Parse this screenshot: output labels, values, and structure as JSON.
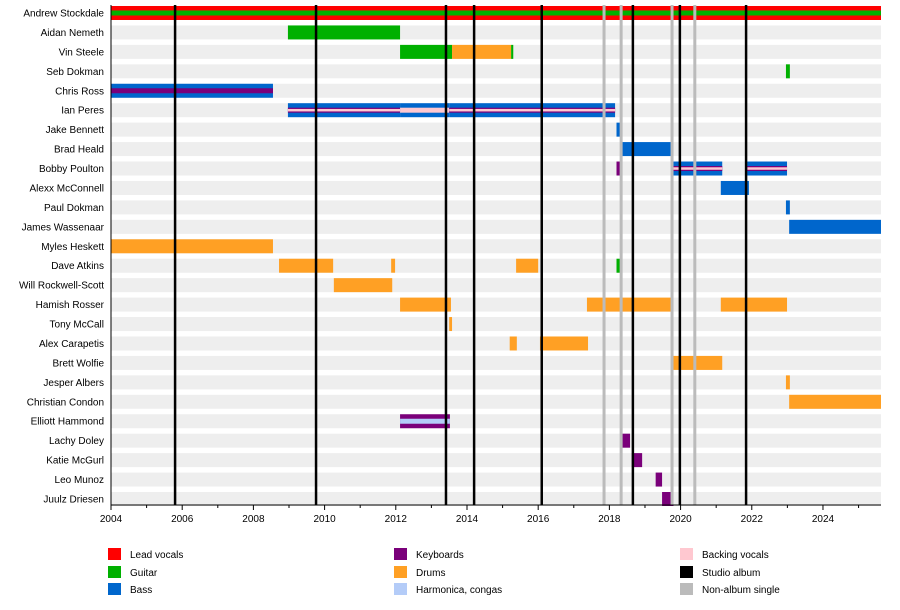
{
  "chart_data": {
    "type": "timeline",
    "xlim": [
      2004,
      2025.63
    ],
    "x_ticks": [
      2004,
      2006,
      2008,
      2010,
      2012,
      2014,
      2016,
      2018,
      2020,
      2022,
      2024
    ],
    "grid": false,
    "legend_placement": "bottom",
    "roles": {
      "Lead vocals": "#ff0000",
      "Guitar": "#00b000",
      "Bass": "#0066cc",
      "Keyboards": "#7a007a",
      "Drums": "#ffa024",
      "Harmonica, congas": "#b4ccf8",
      "Backing vocals": "#ffc8d0"
    },
    "legend": [
      {
        "label": "Lead vocals",
        "color": "#ff0000"
      },
      {
        "label": "Guitar",
        "color": "#00b000"
      },
      {
        "label": "Bass",
        "color": "#0066cc"
      },
      {
        "label": "Keyboards",
        "color": "#7a007a"
      },
      {
        "label": "Drums",
        "color": "#ffa024"
      },
      {
        "label": "Harmonica, congas",
        "color": "#b4ccf8"
      },
      {
        "label": "Backing vocals",
        "color": "#ffc8d0"
      },
      {
        "label": "Studio album",
        "color": "#000000"
      },
      {
        "label": "Non-album single",
        "color": "#bbbbbb"
      }
    ],
    "studio_albums": [
      2005.8,
      2009.76,
      2013.41,
      2014.2,
      2016.1,
      2018.66,
      2019.98,
      2021.84
    ],
    "non_album_singles": [
      2017.85,
      2018.33,
      2019.76,
      2020.4
    ],
    "members": [
      {
        "name": "Andrew Stockdale",
        "bars": [
          {
            "start": 2004,
            "end": 2025.63,
            "roles": [
              "Lead vocals",
              "Guitar"
            ]
          }
        ]
      },
      {
        "name": "Aidan Nemeth",
        "bars": [
          {
            "start": 2008.97,
            "end": 2012.12,
            "roles": [
              "Guitar"
            ]
          }
        ]
      },
      {
        "name": "Vin Steele",
        "bars": [
          {
            "start": 2012.12,
            "end": 2013.58,
            "roles": [
              "Guitar"
            ]
          },
          {
            "start": 2013.58,
            "end": 2015.24,
            "roles": [
              "Drums"
            ]
          },
          {
            "start": 2015.24,
            "end": 2015.3,
            "roles": [
              "Guitar"
            ]
          }
        ]
      },
      {
        "name": "Seb Dokman",
        "bars": [
          {
            "start": 2022.96,
            "end": 2023.07,
            "roles": [
              "Guitar"
            ]
          }
        ]
      },
      {
        "name": "Chris Ross",
        "bars": [
          {
            "start": 2004,
            "end": 2008.55,
            "roles": [
              "Bass",
              "Keyboards"
            ]
          }
        ]
      },
      {
        "name": "Ian Peres",
        "bars": [
          {
            "start": 2008.97,
            "end": 2012.12,
            "roles": [
              "Bass",
              "Keyboards",
              "Backing vocals"
            ]
          },
          {
            "start": 2012.12,
            "end": 2013.5,
            "roles": [
              "Bass",
              "Backing vocals"
            ]
          },
          {
            "start": 2013.5,
            "end": 2018.16,
            "roles": [
              "Bass",
              "Keyboards",
              "Backing vocals"
            ]
          }
        ]
      },
      {
        "name": "Jake Bennett",
        "bars": [
          {
            "start": 2018.2,
            "end": 2018.33,
            "roles": [
              "Bass"
            ]
          }
        ]
      },
      {
        "name": "Brad Heald",
        "bars": [
          {
            "start": 2018.3,
            "end": 2019.8,
            "roles": [
              "Bass"
            ]
          }
        ]
      },
      {
        "name": "Bobby Poulton",
        "bars": [
          {
            "start": 2018.2,
            "end": 2018.33,
            "roles": [
              "Keyboards"
            ]
          },
          {
            "start": 2019.76,
            "end": 2021.17,
            "roles": [
              "Bass",
              "Keyboards",
              "Backing vocals"
            ]
          },
          {
            "start": 2021.87,
            "end": 2022.99,
            "roles": [
              "Bass",
              "Keyboards",
              "Backing vocals"
            ]
          }
        ]
      },
      {
        "name": "Alexx McConnell",
        "bars": [
          {
            "start": 2021.13,
            "end": 2021.92,
            "roles": [
              "Bass"
            ]
          }
        ]
      },
      {
        "name": "Paul Dokman",
        "bars": [
          {
            "start": 2022.96,
            "end": 2023.07,
            "roles": [
              "Bass"
            ]
          }
        ]
      },
      {
        "name": "James Wassenaar",
        "bars": [
          {
            "start": 2023.05,
            "end": 2025.63,
            "roles": [
              "Bass"
            ]
          }
        ]
      },
      {
        "name": "Myles Heskett",
        "bars": [
          {
            "start": 2004,
            "end": 2008.55,
            "roles": [
              "Drums"
            ]
          }
        ]
      },
      {
        "name": "Dave Atkins",
        "bars": [
          {
            "start": 2008.72,
            "end": 2010.24,
            "roles": [
              "Drums"
            ]
          },
          {
            "start": 2011.87,
            "end": 2011.98,
            "roles": [
              "Drums"
            ]
          },
          {
            "start": 2015.38,
            "end": 2016.0,
            "roles": [
              "Drums"
            ]
          },
          {
            "start": 2018.2,
            "end": 2018.33,
            "roles": [
              "Guitar"
            ]
          }
        ]
      },
      {
        "name": "Will Rockwell-Scott",
        "bars": [
          {
            "start": 2010.26,
            "end": 2011.9,
            "roles": [
              "Drums"
            ]
          }
        ]
      },
      {
        "name": "Hamish Rosser",
        "bars": [
          {
            "start": 2012.12,
            "end": 2013.55,
            "roles": [
              "Drums"
            ]
          },
          {
            "start": 2017.37,
            "end": 2019.79,
            "roles": [
              "Drums"
            ]
          },
          {
            "start": 2021.13,
            "end": 2022.99,
            "roles": [
              "Drums"
            ]
          }
        ]
      },
      {
        "name": "Tony McCall",
        "bars": [
          {
            "start": 2013.5,
            "end": 2013.58,
            "roles": [
              "Drums"
            ]
          }
        ]
      },
      {
        "name": "Alex Carapetis",
        "bars": [
          {
            "start": 2015.2,
            "end": 2015.4,
            "roles": [
              "Drums"
            ]
          },
          {
            "start": 2016.05,
            "end": 2017.4,
            "roles": [
              "Drums"
            ]
          }
        ]
      },
      {
        "name": "Brett Wolfie",
        "bars": [
          {
            "start": 2019.76,
            "end": 2021.17,
            "roles": [
              "Drums"
            ]
          }
        ]
      },
      {
        "name": "Jesper Albers",
        "bars": [
          {
            "start": 2022.96,
            "end": 2023.07,
            "roles": [
              "Drums"
            ]
          }
        ]
      },
      {
        "name": "Christian Condon",
        "bars": [
          {
            "start": 2023.05,
            "end": 2025.63,
            "roles": [
              "Drums"
            ]
          }
        ]
      },
      {
        "name": "Elliott Hammond",
        "bars": [
          {
            "start": 2012.12,
            "end": 2013.52,
            "roles": [
              "Keyboards",
              "Harmonica, congas"
            ]
          }
        ]
      },
      {
        "name": "Lachy Doley",
        "bars": [
          {
            "start": 2018.3,
            "end": 2018.58,
            "roles": [
              "Keyboards"
            ]
          }
        ]
      },
      {
        "name": "Katie McGurl",
        "bars": [
          {
            "start": 2018.63,
            "end": 2018.92,
            "roles": [
              "Keyboards"
            ]
          }
        ]
      },
      {
        "name": "Leo Munoz",
        "bars": [
          {
            "start": 2019.3,
            "end": 2019.48,
            "roles": [
              "Keyboards"
            ]
          }
        ]
      },
      {
        "name": "Juulz Driesen",
        "bars": [
          {
            "start": 2019.48,
            "end": 2019.8,
            "roles": [
              "Keyboards"
            ]
          }
        ]
      }
    ]
  }
}
